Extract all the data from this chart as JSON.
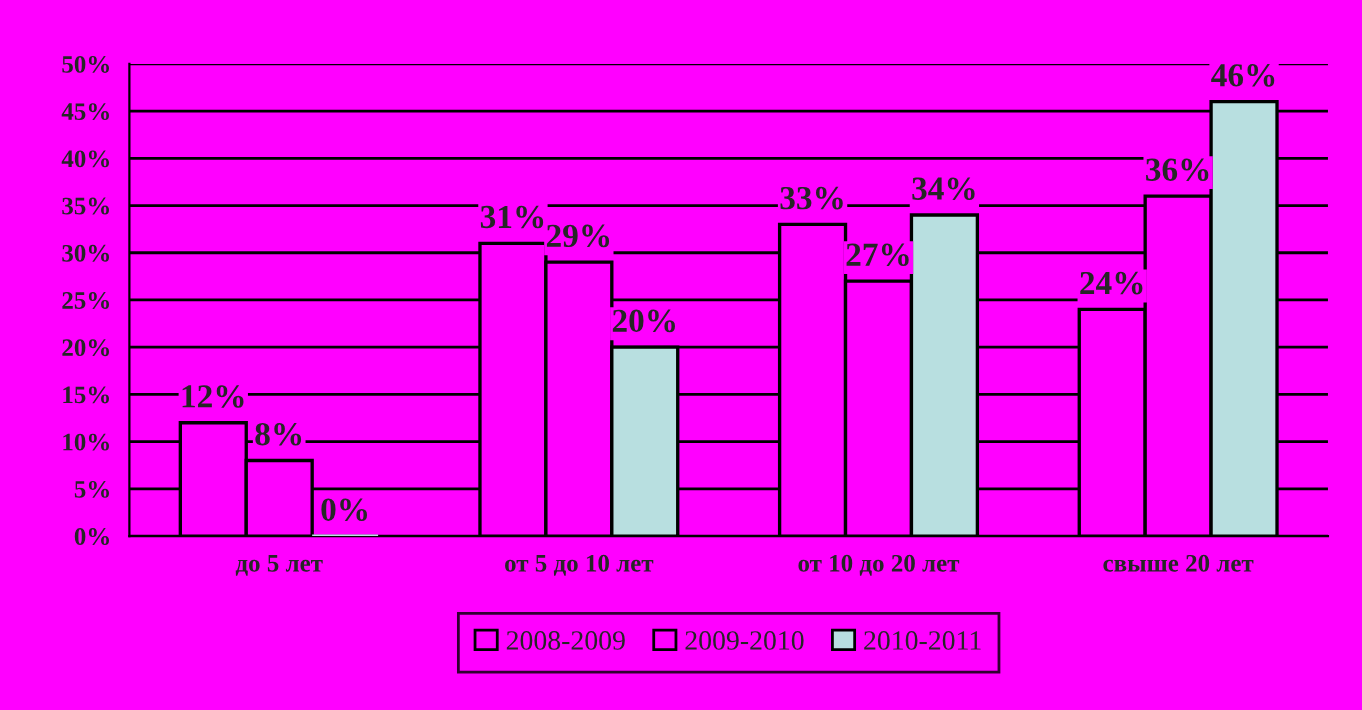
{
  "chart_data": {
    "type": "bar",
    "categories": [
      "до 5 лет",
      "от 5 до 10 лет",
      "от 10 до 20 лет",
      "свыше 20 лет"
    ],
    "series": [
      {
        "name": "2008-2009",
        "color": "#ff00ff",
        "values": [
          12,
          31,
          33,
          24
        ],
        "value_labels": [
          "12%",
          "31%",
          "33%",
          "24%"
        ]
      },
      {
        "name": "2009-2010",
        "color": "#ff00ff",
        "values": [
          8,
          29,
          27,
          36
        ],
        "value_labels": [
          "8%",
          "29%",
          "27%",
          "36%"
        ]
      },
      {
        "name": "2010-2011",
        "color": "#b8dfe0",
        "values": [
          0,
          20,
          34,
          46
        ],
        "value_labels": [
          "0%",
          "20%",
          "34%",
          "46%"
        ]
      }
    ],
    "ylim": [
      0,
      50
    ],
    "yticks": [
      {
        "value": 0,
        "label": "0%"
      },
      {
        "value": 5,
        "label": "5%"
      },
      {
        "value": 10,
        "label": "10%"
      },
      {
        "value": 15,
        "label": "15%"
      },
      {
        "value": 20,
        "label": "20%"
      },
      {
        "value": 25,
        "label": "25%"
      },
      {
        "value": 30,
        "label": "30%"
      },
      {
        "value": 35,
        "label": "35%"
      },
      {
        "value": 40,
        "label": "40%"
      },
      {
        "value": 45,
        "label": "45%"
      },
      {
        "value": 50,
        "label": "50%"
      }
    ],
    "grid": "y",
    "legend": "bottom"
  }
}
